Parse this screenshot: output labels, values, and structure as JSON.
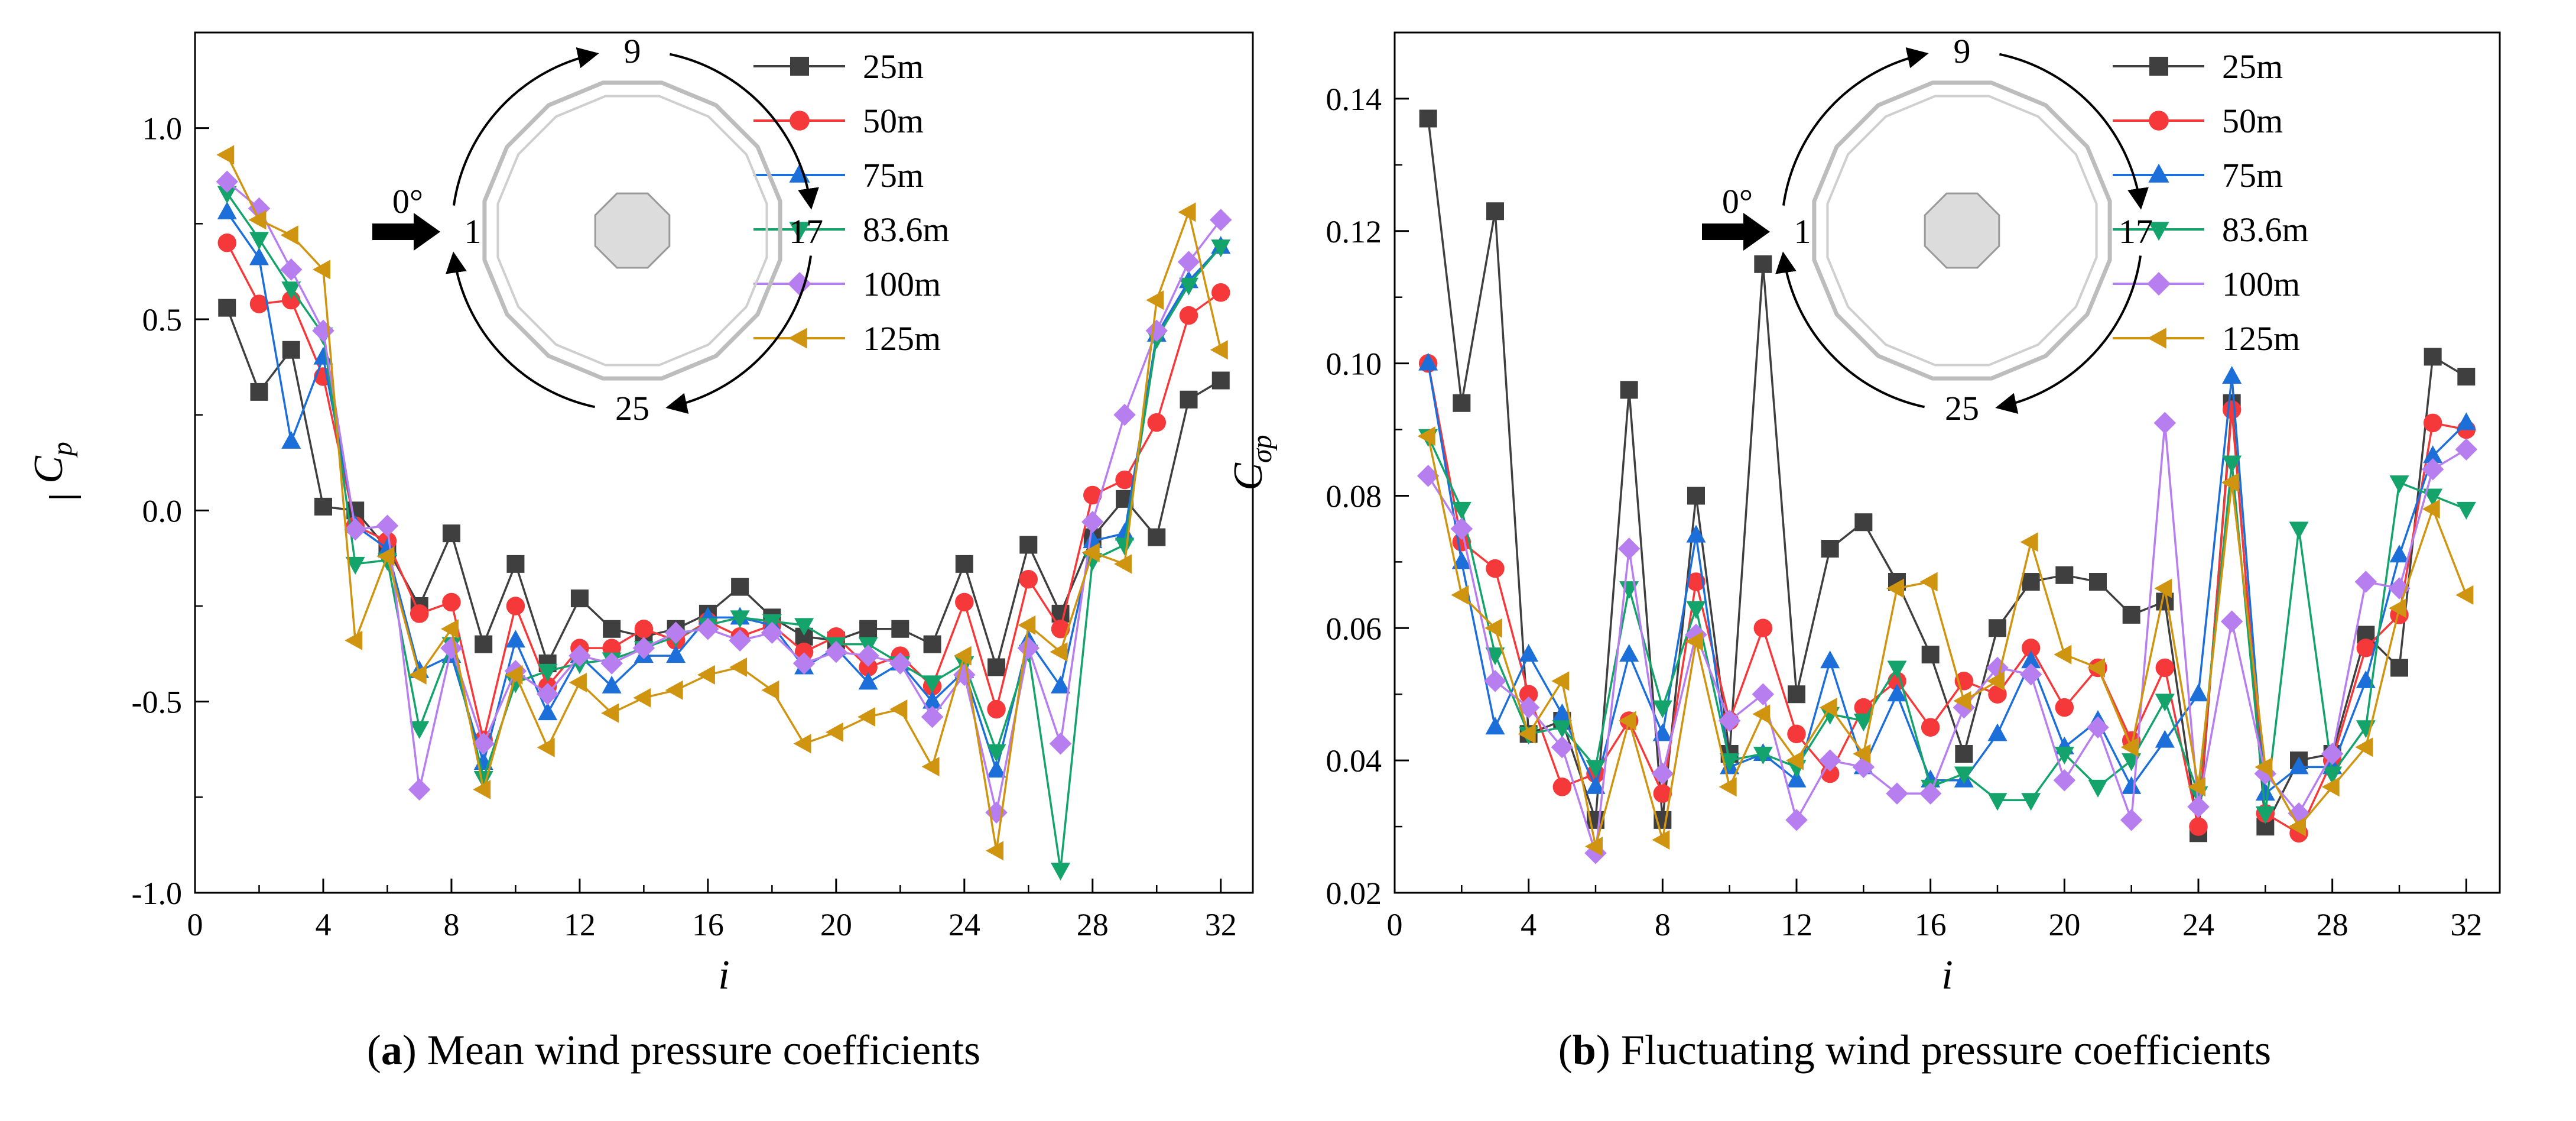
{
  "colors": {
    "25m": "#3f3f3f",
    "50m": "#f5383a",
    "75m": "#1c6fd8",
    "83.6m": "#13a36b",
    "100m": "#b77ef0",
    "125m": "#cf9410"
  },
  "chart_data": [
    {
      "type": "line",
      "panel": "a",
      "caption": {
        "letter": "a",
        "text": "Mean wind pressure coefficients"
      },
      "xlabel": "i",
      "ylabel": "C",
      "ylabel_sub": "p",
      "xlim": [
        0,
        33
      ],
      "ylim": [
        -1.0,
        1.25
      ],
      "xticks": [
        0,
        4,
        8,
        12,
        16,
        20,
        24,
        28,
        32
      ],
      "yticks": [
        -1.0,
        -0.5,
        0.0,
        0.5,
        1.0
      ],
      "ytick_labels": [
        "-1.0",
        "-0.5",
        "0.0",
        "0.5",
        "1.0"
      ],
      "legend_position": "top-right",
      "inset": {
        "label_left": "1",
        "label_top": "9",
        "label_right": "17",
        "label_bottom": "25",
        "wind_label": "0°"
      },
      "x": [
        1,
        2,
        3,
        4,
        5,
        6,
        7,
        8,
        9,
        10,
        11,
        12,
        13,
        14,
        15,
        16,
        17,
        18,
        19,
        20,
        21,
        22,
        23,
        24,
        25,
        26,
        27,
        28,
        29,
        30,
        31,
        32
      ],
      "series": [
        {
          "name": "25m",
          "marker": "square",
          "values": [
            0.53,
            0.31,
            0.42,
            0.01,
            0.0,
            -0.1,
            -0.25,
            -0.06,
            -0.35,
            -0.14,
            -0.4,
            -0.23,
            -0.31,
            -0.33,
            -0.31,
            -0.27,
            -0.2,
            -0.28,
            -0.33,
            -0.34,
            -0.31,
            -0.31,
            -0.35,
            -0.14,
            -0.41,
            -0.09,
            -0.27,
            -0.07,
            0.03,
            -0.07,
            0.29,
            0.34
          ]
        },
        {
          "name": "50m",
          "marker": "circle",
          "values": [
            0.7,
            0.54,
            0.55,
            0.35,
            -0.04,
            -0.08,
            -0.27,
            -0.24,
            -0.6,
            -0.25,
            -0.46,
            -0.36,
            -0.36,
            -0.31,
            -0.34,
            -0.29,
            -0.33,
            -0.3,
            -0.37,
            -0.33,
            -0.41,
            -0.38,
            -0.46,
            -0.24,
            -0.52,
            -0.18,
            -0.31,
            0.04,
            0.08,
            0.23,
            0.51,
            0.57
          ]
        },
        {
          "name": "75m",
          "marker": "triangle-up",
          "values": [
            0.78,
            0.66,
            0.18,
            0.4,
            -0.04,
            -0.1,
            -0.42,
            -0.38,
            -0.66,
            -0.34,
            -0.53,
            -0.38,
            -0.46,
            -0.38,
            -0.38,
            -0.28,
            -0.28,
            -0.3,
            -0.41,
            -0.36,
            -0.45,
            -0.4,
            -0.5,
            -0.42,
            -0.68,
            -0.34,
            -0.46,
            -0.08,
            -0.06,
            0.46,
            0.6,
            0.69
          ]
        },
        {
          "name": "83.6m",
          "marker": "triangle-down",
          "values": [
            0.83,
            0.71,
            0.58,
            0.46,
            -0.14,
            -0.13,
            -0.57,
            -0.35,
            -0.7,
            -0.45,
            -0.42,
            -0.4,
            -0.39,
            -0.36,
            -0.33,
            -0.3,
            -0.28,
            -0.29,
            -0.3,
            -0.35,
            -0.35,
            -0.4,
            -0.45,
            -0.4,
            -0.63,
            -0.37,
            -0.94,
            -0.13,
            -0.09,
            0.45,
            0.59,
            0.69
          ]
        },
        {
          "name": "100m",
          "marker": "diamond",
          "values": [
            0.86,
            0.79,
            0.63,
            0.47,
            -0.05,
            -0.04,
            -0.73,
            -0.36,
            -0.61,
            -0.42,
            -0.48,
            -0.38,
            -0.4,
            -0.36,
            -0.32,
            -0.31,
            -0.34,
            -0.32,
            -0.4,
            -0.37,
            -0.38,
            -0.4,
            -0.54,
            -0.43,
            -0.79,
            -0.36,
            -0.61,
            -0.03,
            0.25,
            0.47,
            0.65,
            0.76
          ]
        },
        {
          "name": "125m",
          "marker": "triangle-left",
          "values": [
            0.93,
            0.76,
            0.72,
            0.63,
            -0.34,
            -0.12,
            -0.43,
            -0.31,
            -0.73,
            -0.43,
            -0.62,
            -0.45,
            -0.53,
            -0.49,
            -0.47,
            -0.43,
            -0.41,
            -0.47,
            -0.61,
            -0.58,
            -0.54,
            -0.52,
            -0.67,
            -0.38,
            -0.89,
            -0.3,
            -0.37,
            -0.11,
            -0.14,
            0.55,
            0.78,
            0.42
          ]
        }
      ]
    },
    {
      "type": "line",
      "panel": "b",
      "caption": {
        "letter": "b",
        "text": "Fluctuating wind pressure coefficients"
      },
      "xlabel": "i",
      "ylabel": "C",
      "ylabel_sub": "σp",
      "xlim": [
        0,
        33
      ],
      "ylim": [
        0.02,
        0.15
      ],
      "xticks": [
        0,
        4,
        8,
        12,
        16,
        20,
        24,
        28,
        32
      ],
      "yticks": [
        0.02,
        0.04,
        0.06,
        0.08,
        0.1,
        0.12,
        0.14
      ],
      "ytick_labels": [
        "0.02",
        "0.04",
        "0.06",
        "0.08",
        "0.10",
        "0.12",
        "0.14"
      ],
      "legend_position": "top-right",
      "inset": {
        "label_left": "1",
        "label_top": "9",
        "label_right": "17",
        "label_bottom": "25",
        "wind_label": "0°"
      },
      "x": [
        1,
        2,
        3,
        4,
        5,
        6,
        7,
        8,
        9,
        10,
        11,
        12,
        13,
        14,
        15,
        16,
        17,
        18,
        19,
        20,
        21,
        22,
        23,
        24,
        25,
        26,
        27,
        28,
        29,
        30,
        31,
        32
      ],
      "series": [
        {
          "name": "25m",
          "marker": "square",
          "values": [
            0.137,
            0.094,
            0.123,
            0.044,
            0.046,
            0.031,
            0.096,
            0.031,
            0.08,
            0.041,
            0.115,
            0.05,
            0.072,
            0.076,
            0.067,
            0.056,
            0.041,
            0.06,
            0.067,
            0.068,
            0.067,
            0.062,
            0.064,
            0.029,
            0.094,
            0.03,
            0.04,
            0.041,
            0.059,
            0.054,
            0.101,
            0.098
          ]
        },
        {
          "name": "50m",
          "marker": "circle",
          "values": [
            0.1,
            0.073,
            0.069,
            0.05,
            0.036,
            0.038,
            0.046,
            0.035,
            0.067,
            0.046,
            0.06,
            0.044,
            0.038,
            0.048,
            0.052,
            0.045,
            0.052,
            0.05,
            0.057,
            0.048,
            0.054,
            0.043,
            0.054,
            0.03,
            0.093,
            0.032,
            0.029,
            0.04,
            0.057,
            0.062,
            0.091,
            0.09
          ]
        },
        {
          "name": "75m",
          "marker": "triangle-up",
          "values": [
            0.1,
            0.07,
            0.045,
            0.056,
            0.047,
            0.036,
            0.056,
            0.044,
            0.074,
            0.039,
            0.041,
            0.037,
            0.055,
            0.039,
            0.05,
            0.037,
            0.037,
            0.044,
            0.055,
            0.042,
            0.046,
            0.036,
            0.043,
            0.05,
            0.098,
            0.035,
            0.039,
            0.039,
            0.052,
            0.071,
            0.086,
            0.091
          ]
        },
        {
          "name": "83.6m",
          "marker": "triangle-down",
          "values": [
            0.089,
            0.078,
            0.056,
            0.044,
            0.045,
            0.039,
            0.066,
            0.048,
            0.063,
            0.04,
            0.041,
            0.039,
            0.047,
            0.046,
            0.054,
            0.036,
            0.038,
            0.034,
            0.034,
            0.041,
            0.036,
            0.04,
            0.049,
            0.035,
            0.085,
            0.032,
            0.075,
            0.038,
            0.045,
            0.082,
            0.08,
            0.078
          ]
        },
        {
          "name": "100m",
          "marker": "diamond",
          "values": [
            0.083,
            0.075,
            0.052,
            0.048,
            0.042,
            0.026,
            0.072,
            0.038,
            0.059,
            0.046,
            0.05,
            0.031,
            0.04,
            0.039,
            0.035,
            0.035,
            0.048,
            0.054,
            0.053,
            0.037,
            0.045,
            0.031,
            0.091,
            0.033,
            0.061,
            0.038,
            0.032,
            0.041,
            0.067,
            0.066,
            0.084,
            0.087
          ]
        },
        {
          "name": "125m",
          "marker": "triangle-left",
          "values": [
            0.089,
            0.065,
            0.06,
            0.044,
            0.052,
            0.027,
            0.046,
            0.028,
            0.058,
            0.036,
            0.047,
            0.04,
            0.048,
            0.041,
            0.066,
            0.067,
            0.049,
            0.052,
            0.073,
            0.056,
            0.054,
            0.042,
            0.066,
            0.036,
            0.082,
            0.039,
            0.03,
            0.036,
            0.042,
            0.063,
            0.078,
            0.065
          ]
        }
      ]
    }
  ]
}
